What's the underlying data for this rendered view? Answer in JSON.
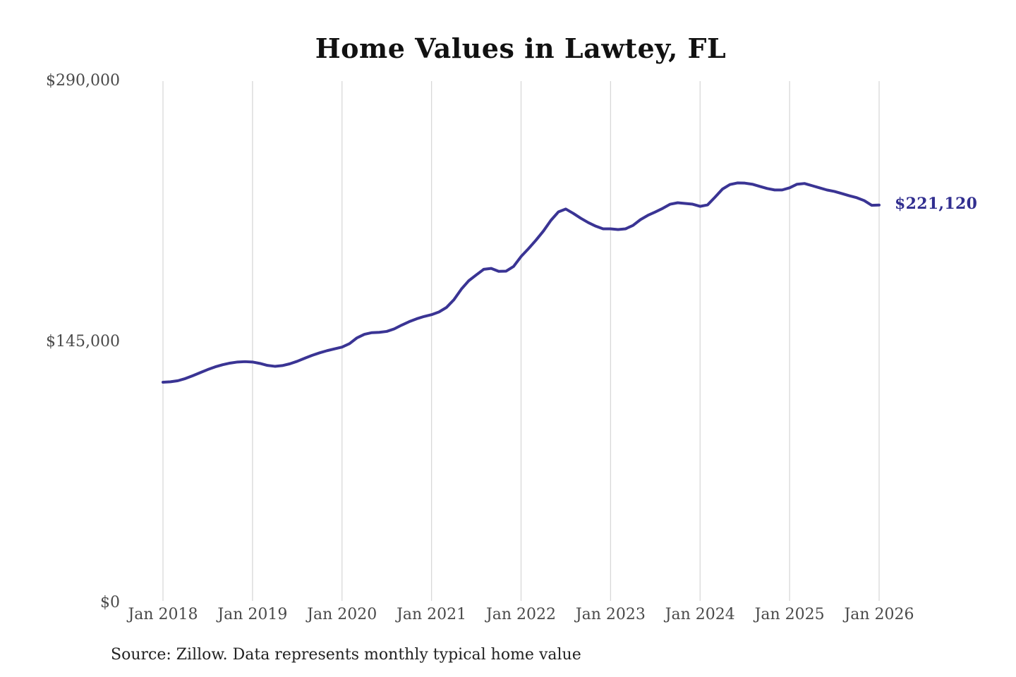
{
  "title": "Home Values in Lawtey, FL",
  "source_note": "Source: Zillow. Data represents monthly typical home value",
  "colors": {
    "line": "#3a3494",
    "end_label": "#312e8f",
    "grid": "#d8d8d8",
    "axis_text": "#4a4a4a",
    "title_text": "#111111",
    "source_text": "#222222"
  },
  "chart_data": {
    "type": "line",
    "title": "Home Values in Lawtey, FL",
    "xlabel": "",
    "ylabel": "",
    "x_interval": "monthly",
    "x_range": [
      "Jan 2018",
      "Jan 2026"
    ],
    "x_tick_labels": [
      "Jan 2018",
      "Jan 2019",
      "Jan 2020",
      "Jan 2021",
      "Jan 2022",
      "Jan 2023",
      "Jan 2024",
      "Jan 2025",
      "Jan 2026"
    ],
    "y_ticks": [
      {
        "label": "$290,000",
        "value": 290000
      },
      {
        "label": "$145,000",
        "value": 145000
      },
      {
        "label": "$0",
        "value": 0
      }
    ],
    "ylim": [
      0,
      290000
    ],
    "grid": "vertical-only",
    "legend": "none",
    "end_label": "$221,120",
    "end_value": 221120,
    "series": [
      {
        "name": "Typical home value",
        "values": [
          122650,
          122900,
          123500,
          124700,
          126300,
          128000,
          129700,
          131200,
          132400,
          133300,
          133900,
          134100,
          133900,
          133100,
          132000,
          131500,
          131900,
          132900,
          134300,
          136000,
          137600,
          139000,
          140200,
          141200,
          142200,
          144100,
          147300,
          149300,
          150200,
          150400,
          150900,
          152300,
          154400,
          156300,
          157900,
          159200,
          160200,
          161700,
          164200,
          168500,
          174400,
          179100,
          182300,
          185400,
          185900,
          184300,
          184400,
          187000,
          192500,
          196900,
          201600,
          206700,
          212600,
          217300,
          218900,
          216500,
          213800,
          211400,
          209400,
          207900,
          207900,
          207500,
          207900,
          209800,
          213000,
          215400,
          217300,
          219300,
          221600,
          222400,
          222000,
          221600,
          220400,
          221200,
          225500,
          230000,
          232500,
          233400,
          233300,
          232700,
          231500,
          230300,
          229500,
          229500,
          230700,
          232700,
          233100,
          231900,
          230700,
          229500,
          228700,
          227500,
          226300,
          225200,
          223600,
          221000,
          221120
        ]
      }
    ]
  }
}
